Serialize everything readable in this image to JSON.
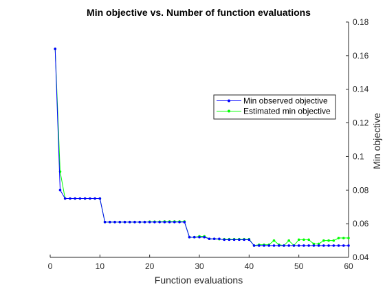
{
  "chart_data": {
    "type": "line",
    "title": "Min objective vs. Number of function evaluations",
    "xlabel": "Function evaluations",
    "ylabel": "Min objective",
    "xlim": [
      0,
      60
    ],
    "ylim": [
      0.04,
      0.18
    ],
    "xticks": [
      "0",
      "10",
      "20",
      "30",
      "40",
      "50",
      "60"
    ],
    "yticks": [
      "0.04",
      "0.06",
      "0.08",
      "0.1",
      "0.12",
      "0.14",
      "0.16",
      "0.18"
    ],
    "y_axis_side": "right",
    "grid": false,
    "legend_position": "right",
    "x": [
      1,
      2,
      3,
      4,
      5,
      6,
      7,
      8,
      9,
      10,
      11,
      12,
      13,
      14,
      15,
      16,
      17,
      18,
      19,
      20,
      21,
      22,
      23,
      24,
      25,
      26,
      27,
      28,
      29,
      30,
      31,
      32,
      33,
      34,
      35,
      36,
      37,
      38,
      39,
      40,
      41,
      42,
      43,
      44,
      45,
      46,
      47,
      48,
      49,
      50,
      51,
      52,
      53,
      54,
      55,
      56,
      57,
      58,
      59,
      60
    ],
    "series": [
      {
        "name": "Min observed objective",
        "color": "#0000ff",
        "values": [
          0.164,
          0.08,
          0.075,
          0.075,
          0.075,
          0.075,
          0.075,
          0.075,
          0.075,
          0.075,
          0.061,
          0.061,
          0.061,
          0.061,
          0.061,
          0.061,
          0.061,
          0.061,
          0.061,
          0.061,
          0.061,
          0.061,
          0.061,
          0.061,
          0.061,
          0.061,
          0.061,
          0.052,
          0.052,
          0.052,
          0.052,
          0.051,
          0.051,
          0.051,
          0.0505,
          0.0505,
          0.0505,
          0.0505,
          0.0505,
          0.0505,
          0.047,
          0.047,
          0.047,
          0.047,
          0.047,
          0.047,
          0.047,
          0.047,
          0.047,
          0.047,
          0.047,
          0.047,
          0.047,
          0.047,
          0.047,
          0.047,
          0.047,
          0.047,
          0.047,
          0.047
        ]
      },
      {
        "name": "Estimated min objective",
        "color": "#00ff00",
        "values": [
          0.164,
          0.091,
          0.075,
          0.075,
          0.075,
          0.075,
          0.075,
          0.075,
          0.075,
          0.075,
          0.061,
          0.061,
          0.061,
          0.061,
          0.061,
          0.061,
          0.061,
          0.061,
          0.061,
          0.0612,
          0.0612,
          0.0612,
          0.0613,
          0.0613,
          0.0613,
          0.0613,
          0.0613,
          0.052,
          0.052,
          0.0525,
          0.0525,
          0.051,
          0.051,
          0.0508,
          0.0508,
          0.0508,
          0.0508,
          0.0508,
          0.0508,
          0.0508,
          0.047,
          0.0475,
          0.0475,
          0.0475,
          0.05,
          0.0475,
          0.047,
          0.05,
          0.047,
          0.0505,
          0.0505,
          0.0505,
          0.048,
          0.048,
          0.05,
          0.05,
          0.05,
          0.0515,
          0.0515,
          0.0515
        ]
      }
    ]
  }
}
